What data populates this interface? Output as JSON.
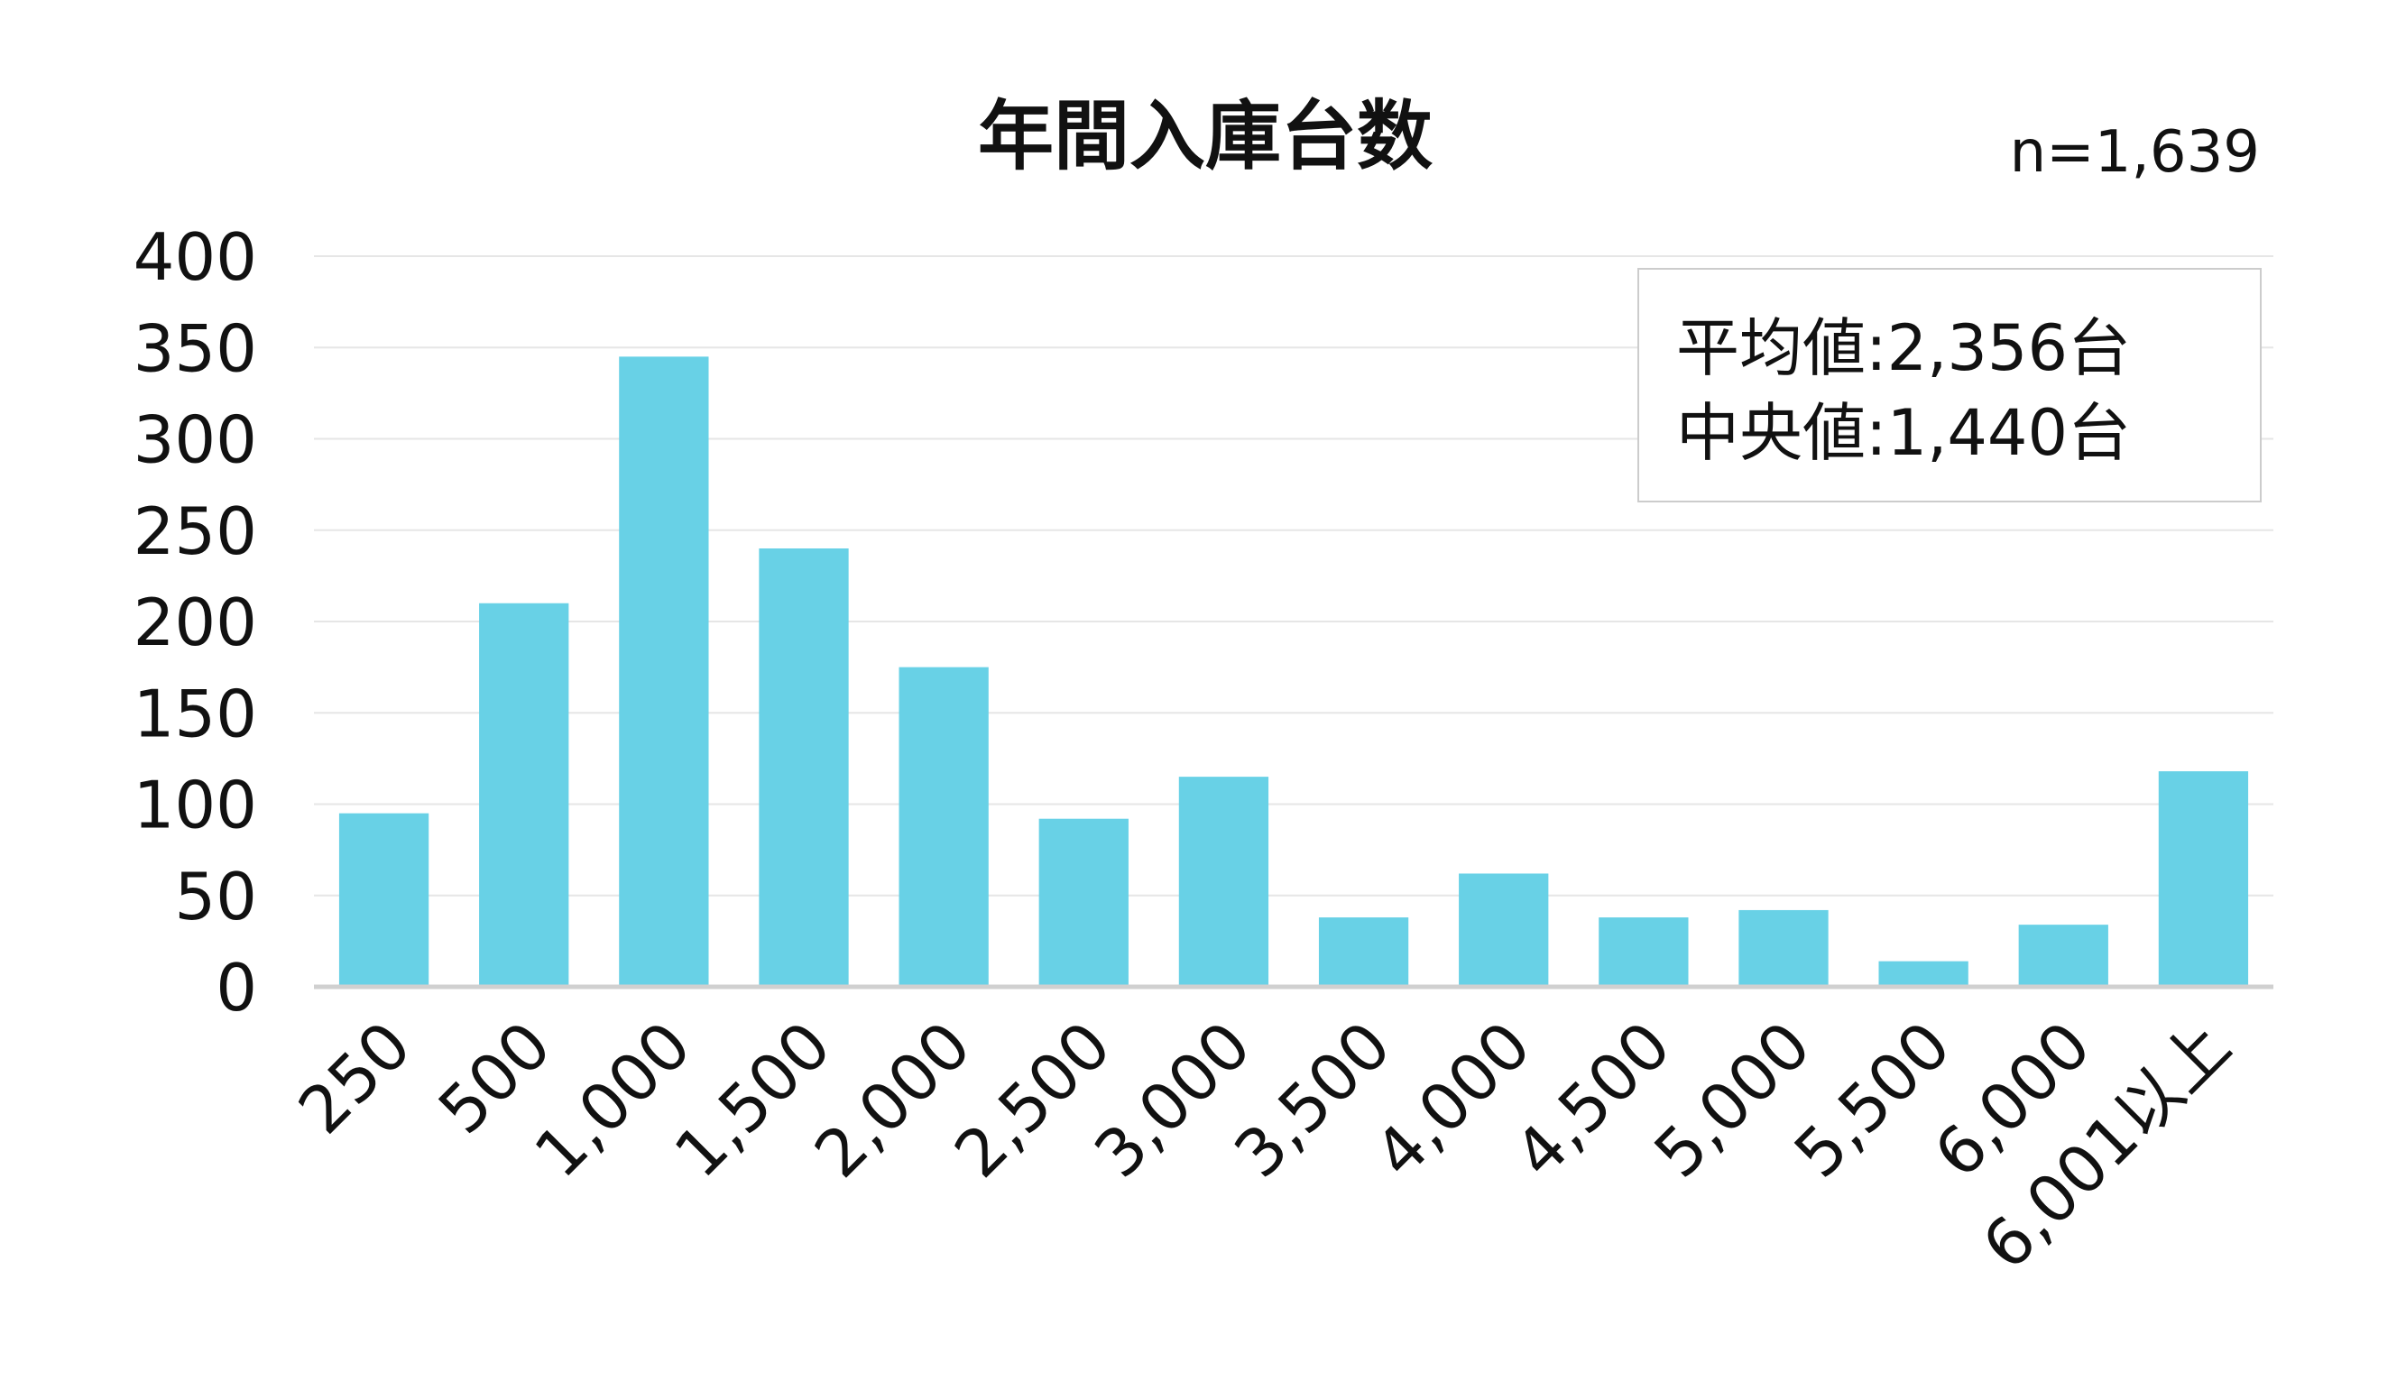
{
  "chart_data": {
    "type": "bar",
    "title": "年間入庫台数",
    "sample_size": "n=1,639",
    "categories": [
      "250",
      "500",
      "1,000",
      "1,500",
      "2,000",
      "2,500",
      "3,000",
      "3,500",
      "4,000",
      "4,500",
      "5,000",
      "5,500",
      "6,000",
      "6,001以上"
    ],
    "values": [
      95,
      210,
      345,
      240,
      175,
      92,
      115,
      38,
      62,
      38,
      42,
      14,
      34,
      118
    ],
    "ylim": [
      0,
      400
    ],
    "yticks": [
      0,
      50,
      100,
      150,
      200,
      250,
      300,
      350,
      400
    ],
    "ytick_labels": [
      "0",
      "50",
      "100",
      "150",
      "200",
      "250",
      "300",
      "350",
      "400"
    ],
    "grid": true,
    "bar_color": "#68d1e6",
    "stats": {
      "mean_label": "平均値:2,356台",
      "median_label": "中央値:1,440台"
    },
    "stats_box_position": "top-right"
  }
}
